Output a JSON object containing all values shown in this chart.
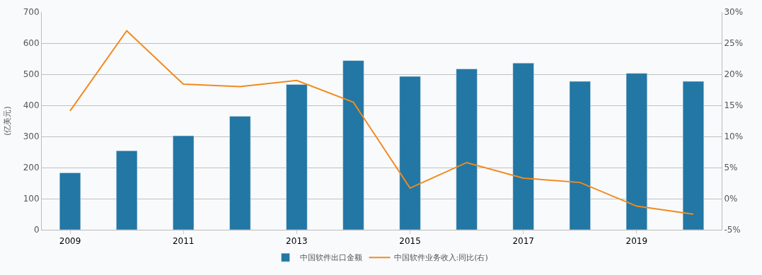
{
  "chart_data": {
    "type": "bar",
    "categories": [
      "2009",
      null,
      "2011",
      null,
      "2013",
      null,
      "2015",
      null,
      "2017",
      null,
      "2019",
      null
    ],
    "ylabel": "(亿美元)",
    "series": [
      {
        "name": "中国软件出口金额",
        "color": "#2277a4",
        "values": [
          183,
          254,
          302,
          365,
          467,
          544,
          493,
          517,
          536,
          477,
          503,
          477
        ]
      },
      {
        "name": "中国软件业务收入:同比(右)",
        "type": "line",
        "axis": "y2",
        "color": "#f28a1e",
        "values": [
          14.1,
          27.0,
          18.4,
          18.0,
          19.0,
          15.5,
          1.7,
          5.8,
          3.3,
          2.6,
          -1.2,
          -2.5
        ]
      }
    ],
    "ylim": [
      0,
      700
    ],
    "yticks": [
      0,
      100,
      200,
      300,
      400,
      500,
      600,
      700
    ],
    "y2lim": [
      -5,
      30
    ],
    "y2ticks": [
      {
        "value": -5,
        "label": "-5%"
      },
      {
        "value": 0,
        "label": "0%"
      },
      {
        "value": 5,
        "label": "5%"
      },
      {
        "value": 10,
        "label": "10%"
      },
      {
        "value": 15,
        "label": "15%"
      },
      {
        "value": 20,
        "label": "20%"
      },
      {
        "value": 25,
        "label": "25%"
      },
      {
        "value": 30,
        "label": "30%"
      }
    ],
    "grid": "y",
    "legend": "bottom",
    "marker": "none",
    "line_style": "solid"
  }
}
